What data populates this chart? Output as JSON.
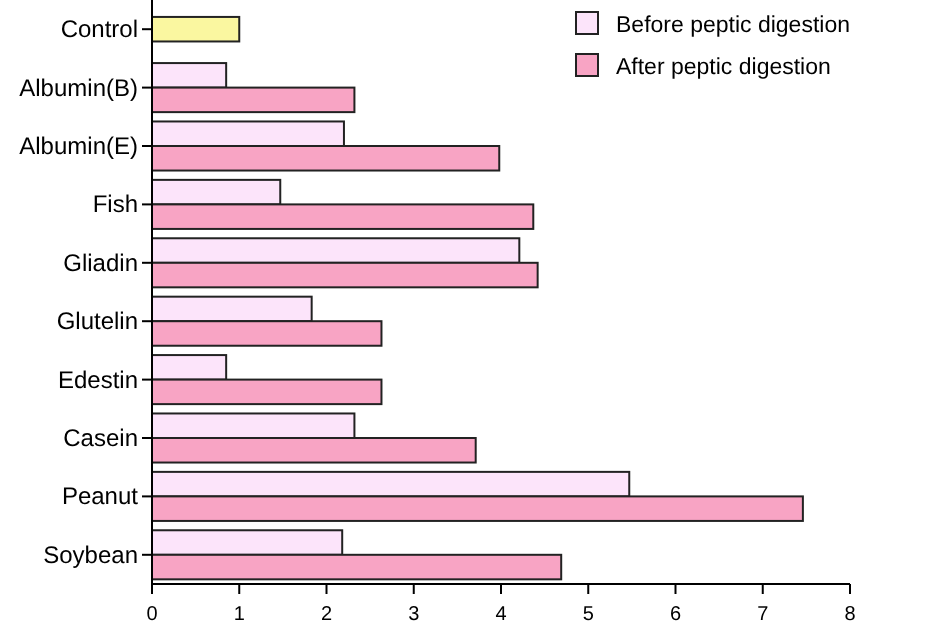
{
  "chart_data": {
    "type": "bar",
    "orientation": "horizontal",
    "categories": [
      "Control",
      "Albumin(B)",
      "Albumin(E)",
      "Fish",
      "Gliadin",
      "Glutelin",
      "Edestin",
      "Casein",
      "Peanut",
      "Soybean"
    ],
    "series": [
      {
        "color": "#faf7a0",
        "values": [
          1.0,
          null,
          null,
          null,
          null,
          null,
          null,
          null,
          null,
          null
        ]
      },
      {
        "name": "Before peptic digestion",
        "color": "#fce4fa",
        "values": [
          null,
          0.85,
          2.2,
          1.47,
          4.21,
          1.83,
          0.85,
          2.32,
          5.47,
          2.18
        ]
      },
      {
        "name": "After peptic digestion",
        "color": "#f8a4c4",
        "values": [
          null,
          2.32,
          3.98,
          4.37,
          4.42,
          2.63,
          2.63,
          3.71,
          7.46,
          4.69
        ]
      }
    ],
    "xlim": [
      0,
      8
    ],
    "xticks": [
      0,
      1,
      2,
      3,
      4,
      5,
      6,
      7,
      8
    ],
    "legend": "top right",
    "grid": false
  }
}
